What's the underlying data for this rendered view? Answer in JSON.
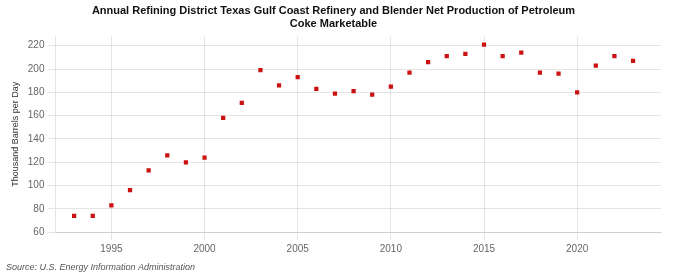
{
  "chart_data": {
    "type": "scatter",
    "title": "Annual Refining District Texas Gulf Coast Refinery and Blender Net Production of Petroleum\nCoke Marketable",
    "ylabel": "Thousand Barrels per Day",
    "source": "Source: U.S. Energy Information Administration",
    "x": [
      1993,
      1994,
      1995,
      1996,
      1997,
      1998,
      1999,
      2000,
      2001,
      2002,
      2003,
      2004,
      2005,
      2006,
      2007,
      2008,
      2009,
      2010,
      2011,
      2012,
      2013,
      2014,
      2015,
      2016,
      2017,
      2018,
      2019,
      2020,
      2021,
      2022,
      2023
    ],
    "values": [
      74,
      74,
      83,
      96,
      113,
      126,
      120,
      124,
      158,
      171,
      199,
      186,
      193,
      183,
      179,
      181,
      178,
      185,
      197,
      206,
      211,
      213,
      221,
      211,
      214,
      197,
      196,
      180,
      203,
      211,
      207
    ],
    "color": "#cc1111",
    "marker": "square",
    "xlim": [
      1992.0,
      2024.5
    ],
    "xticks": [
      1995,
      2000,
      2005,
      2010,
      2015,
      2020
    ],
    "ylim": [
      60,
      228
    ],
    "yticks": [
      60,
      80,
      100,
      120,
      140,
      160,
      180,
      200,
      220
    ],
    "grid": true
  }
}
